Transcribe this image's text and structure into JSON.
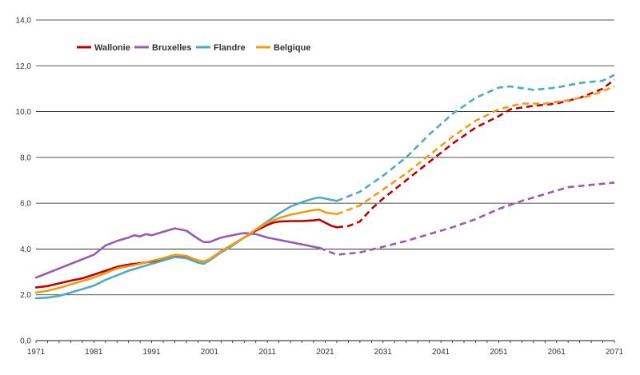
{
  "chart_data": {
    "type": "line",
    "title": "",
    "xlabel": "",
    "ylabel": "",
    "xlim": [
      1971,
      2071
    ],
    "ylim": [
      0,
      14
    ],
    "x_ticks": [
      1971,
      1981,
      1991,
      2001,
      2011,
      2021,
      2031,
      2041,
      2051,
      2061,
      2071
    ],
    "x_tick_labels": [
      "1971",
      "1981",
      "1991",
      "2001",
      "2011",
      "2021",
      "2031",
      "2041",
      "2051",
      "2061",
      "2071"
    ],
    "y_ticks": [
      0,
      2,
      4,
      6,
      8,
      10,
      12,
      14
    ],
    "y_tick_labels": [
      "0,0",
      "2,0",
      "4,0",
      "6,0",
      "8,0",
      "10,0",
      "12,0",
      "14,0"
    ],
    "grid": "horizontal",
    "legend_position": "top-left",
    "projection_style": "dashed after 2023",
    "series": [
      {
        "name": "Wallonie",
        "color": "#c00000",
        "observed": {
          "x": [
            1971,
            1973,
            1975,
            1977,
            1979,
            1981,
            1983,
            1985,
            1987,
            1989,
            1991,
            1993,
            1995,
            1997,
            1999,
            2000,
            2001,
            2003,
            2005,
            2007,
            2009,
            2011,
            2012,
            2013,
            2015,
            2017,
            2019,
            2020,
            2021,
            2022,
            2023
          ],
          "y": [
            2.32,
            2.38,
            2.5,
            2.62,
            2.72,
            2.88,
            3.05,
            3.22,
            3.32,
            3.38,
            3.45,
            3.55,
            3.7,
            3.68,
            3.5,
            3.45,
            3.55,
            3.9,
            4.2,
            4.5,
            4.8,
            5.05,
            5.15,
            5.2,
            5.22,
            5.22,
            5.25,
            5.28,
            5.15,
            5.02,
            4.95
          ]
        },
        "projected": {
          "x": [
            2023,
            2025,
            2027,
            2029,
            2031,
            2035,
            2039,
            2043,
            2047,
            2051,
            2053,
            2057,
            2061,
            2065,
            2069,
            2071
          ],
          "y": [
            4.95,
            5.0,
            5.2,
            5.75,
            6.2,
            7.0,
            7.8,
            8.6,
            9.3,
            9.8,
            10.1,
            10.25,
            10.35,
            10.6,
            11.0,
            11.4
          ]
        }
      },
      {
        "name": "Bruxelles",
        "color": "#9b59b6",
        "observed": {
          "x": [
            1971,
            1973,
            1975,
            1977,
            1979,
            1981,
            1983,
            1985,
            1987,
            1988,
            1989,
            1990,
            1991,
            1993,
            1995,
            1996,
            1997,
            1999,
            2000,
            2001,
            2003,
            2005,
            2007,
            2009,
            2011,
            2013,
            2015,
            2017,
            2019,
            2020
          ],
          "y": [
            2.75,
            2.95,
            3.15,
            3.35,
            3.55,
            3.75,
            4.15,
            4.35,
            4.5,
            4.6,
            4.55,
            4.65,
            4.6,
            4.75,
            4.9,
            4.85,
            4.8,
            4.45,
            4.3,
            4.3,
            4.5,
            4.6,
            4.7,
            4.65,
            4.5,
            4.4,
            4.3,
            4.2,
            4.1,
            4.05
          ]
        },
        "projected": {
          "x": [
            2020,
            2023,
            2027,
            2031,
            2035,
            2039,
            2043,
            2047,
            2051,
            2055,
            2059,
            2063,
            2067,
            2071
          ],
          "y": [
            4.05,
            3.75,
            3.85,
            4.1,
            4.35,
            4.65,
            4.95,
            5.3,
            5.75,
            6.1,
            6.4,
            6.7,
            6.8,
            6.9
          ]
        }
      },
      {
        "name": "Flandre",
        "color": "#4bacc6",
        "observed": {
          "x": [
            1971,
            1973,
            1975,
            1977,
            1979,
            1981,
            1983,
            1985,
            1987,
            1989,
            1991,
            1993,
            1995,
            1997,
            1999,
            2000,
            2001,
            2003,
            2005,
            2007,
            2009,
            2011,
            2013,
            2015,
            2017,
            2019,
            2020,
            2021,
            2023
          ],
          "y": [
            1.85,
            1.88,
            1.95,
            2.1,
            2.25,
            2.4,
            2.65,
            2.85,
            3.05,
            3.2,
            3.35,
            3.5,
            3.65,
            3.6,
            3.4,
            3.35,
            3.5,
            3.85,
            4.15,
            4.5,
            4.85,
            5.2,
            5.55,
            5.85,
            6.05,
            6.2,
            6.25,
            6.2,
            6.1
          ]
        },
        "projected": {
          "x": [
            2023,
            2027,
            2031,
            2035,
            2039,
            2043,
            2047,
            2051,
            2053,
            2057,
            2061,
            2065,
            2069,
            2071
          ],
          "y": [
            6.1,
            6.5,
            7.2,
            8.0,
            9.0,
            9.9,
            10.6,
            11.05,
            11.1,
            10.95,
            11.05,
            11.25,
            11.35,
            11.6
          ]
        }
      },
      {
        "name": "Belgique",
        "color": "#f39c12",
        "observed": {
          "x": [
            1971,
            1973,
            1975,
            1977,
            1979,
            1981,
            1983,
            1985,
            1987,
            1989,
            1991,
            1993,
            1995,
            1997,
            1999,
            2000,
            2001,
            2003,
            2005,
            2007,
            2009,
            2011,
            2013,
            2015,
            2017,
            2019,
            2020,
            2021,
            2023
          ],
          "y": [
            2.1,
            2.18,
            2.3,
            2.45,
            2.6,
            2.75,
            2.95,
            3.15,
            3.25,
            3.35,
            3.48,
            3.6,
            3.75,
            3.7,
            3.5,
            3.45,
            3.55,
            3.9,
            4.2,
            4.5,
            4.85,
            5.15,
            5.35,
            5.5,
            5.6,
            5.7,
            5.72,
            5.6,
            5.52
          ]
        },
        "projected": {
          "x": [
            2023,
            2027,
            2031,
            2035,
            2039,
            2043,
            2047,
            2051,
            2055,
            2059,
            2063,
            2067,
            2071
          ],
          "y": [
            5.52,
            5.9,
            6.6,
            7.3,
            8.1,
            8.9,
            9.6,
            10.1,
            10.35,
            10.35,
            10.5,
            10.7,
            11.1
          ]
        }
      }
    ]
  }
}
